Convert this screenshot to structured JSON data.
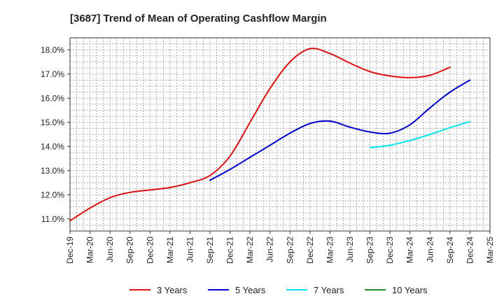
{
  "chart_data": {
    "type": "line",
    "title": "[3687]  Trend of Mean of Operating Cashflow Margin",
    "xlabel": "",
    "ylabel": "",
    "x_tick_labels": [
      "Dec-19",
      "Mar-20",
      "Jun-20",
      "Sep-20",
      "Dec-20",
      "Mar-21",
      "Jun-21",
      "Sep-21",
      "Dec-21",
      "Mar-22",
      "Jun-22",
      "Sep-22",
      "Dec-22",
      "Mar-23",
      "Jun-23",
      "Sep-23",
      "Dec-23",
      "Mar-24",
      "Jun-24",
      "Sep-24",
      "Dec-24",
      "Mar-25"
    ],
    "y_tick_labels": [
      "11.0%",
      "12.0%",
      "13.0%",
      "14.0%",
      "15.0%",
      "16.0%",
      "17.0%",
      "18.0%"
    ],
    "y_ticks": [
      11,
      12,
      13,
      14,
      15,
      16,
      17,
      18
    ],
    "ylim": [
      10.5,
      18.5
    ],
    "grid": true,
    "legend_position": "bottom",
    "series": [
      {
        "name": "3 Years",
        "color": "#dd1111",
        "start_index": 0,
        "values": [
          10.92,
          11.45,
          11.88,
          12.1,
          12.2,
          12.3,
          12.5,
          12.8,
          13.6,
          15.0,
          16.4,
          17.5,
          18.05,
          17.85,
          17.45,
          17.1,
          16.92,
          16.85,
          16.95,
          17.28
        ]
      },
      {
        "name": "5 Years",
        "color": "#0000cc",
        "start_index": 7,
        "values": [
          12.6,
          13.05,
          13.55,
          14.05,
          14.55,
          14.95,
          15.05,
          14.8,
          14.6,
          14.55,
          14.9,
          15.6,
          16.25,
          16.75
        ]
      },
      {
        "name": "7 Years",
        "color": "#00e5ee",
        "start_index": 15,
        "values": [
          13.95,
          14.05,
          14.25,
          14.5,
          14.78,
          15.03
        ]
      },
      {
        "name": "10 Years",
        "color": "#228b22",
        "start_index": 0,
        "values": []
      }
    ]
  }
}
